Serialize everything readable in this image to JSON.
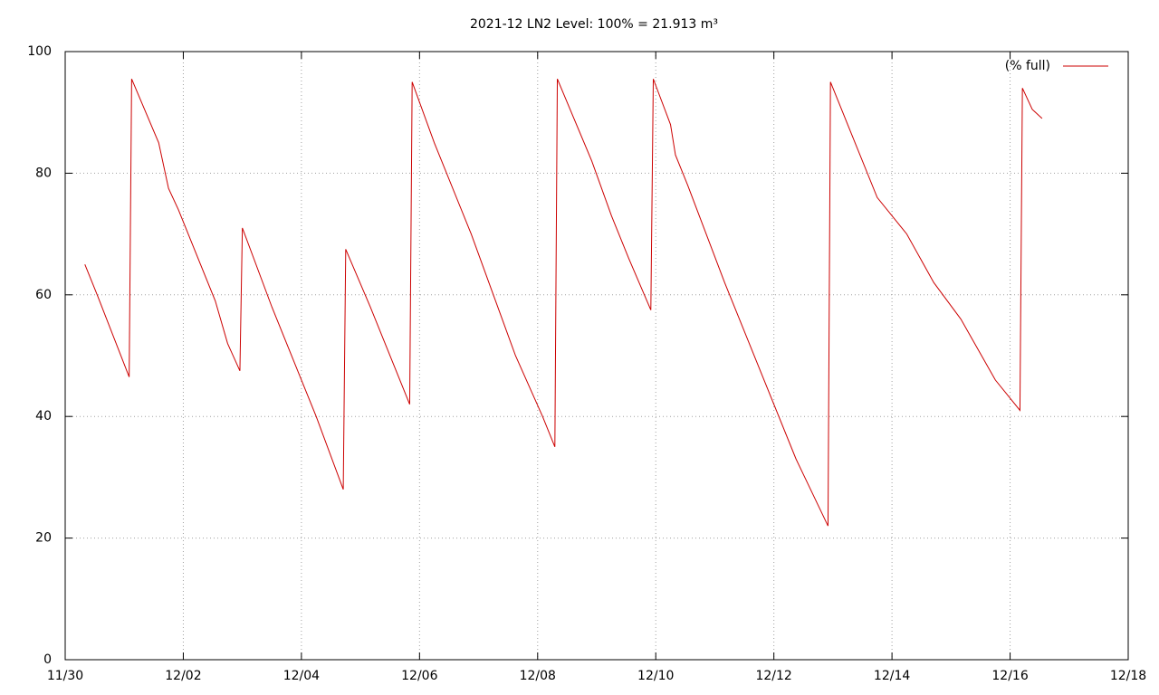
{
  "chart_data": {
    "type": "line",
    "title": "2021-12 LN2 Level: 100% = 21.913 m³",
    "x": [
      "11/30 08:00",
      "11/30 13:00",
      "12/01 02:00",
      "12/01 03:00",
      "12/01 14:00",
      "12/01 18:00",
      "12/01 22:00",
      "12/02 05:00",
      "12/02 13:00",
      "12/02 18:00",
      "12/02 23:00",
      "12/03 00:00",
      "12/03 12:00",
      "12/03 23:00",
      "12/04 06:00",
      "12/04 17:00",
      "12/04 18:00",
      "12/05 04:00",
      "12/05 14:00",
      "12/05 20:00",
      "12/05 21:00",
      "12/06 06:00",
      "12/06 21:00",
      "12/07 06:00",
      "12/07 15:00",
      "12/08 02:00",
      "12/08 07:00",
      "12/08 08:00",
      "12/08 22:00",
      "12/09 06:00",
      "12/09 13:00",
      "12/09 22:00",
      "12/09 23:00",
      "12/10 06:00",
      "12/10 08:00",
      "12/10 13:00",
      "12/11 04:00",
      "12/11 19:00",
      "12/12 09:00",
      "12/12 22:00",
      "12/12 23:00",
      "12/13 06:00",
      "12/13 18:00",
      "12/14 06:00",
      "12/14 17:00",
      "12/15 04:00",
      "12/15 18:00",
      "12/16 04:00",
      "12/16 05:00",
      "12/16 09:00",
      "12/16 13:00"
    ],
    "series": [
      {
        "name": "(% full)",
        "color": "#cc0000",
        "values": [
          65,
          60,
          46.5,
          95.5,
          85,
          77.5,
          74,
          67,
          59,
          52,
          47.5,
          71,
          58,
          47,
          40,
          28,
          67.5,
          58,
          48,
          42,
          95,
          85,
          70,
          60,
          50,
          40,
          35,
          95.5,
          82,
          73,
          66,
          57.5,
          95.5,
          88,
          83,
          78,
          62,
          47,
          33,
          22,
          95,
          88,
          76,
          70,
          62,
          56,
          46,
          41,
          94,
          90.5,
          89
        ]
      }
    ],
    "xlim": [
      "11/30",
      "12/18"
    ],
    "xticks": [
      "11/30",
      "12/02",
      "12/04",
      "12/06",
      "12/08",
      "12/10",
      "12/12",
      "12/14",
      "12/16",
      "12/18"
    ],
    "ylim": [
      0,
      100
    ],
    "yticks": [
      0,
      20,
      40,
      60,
      80,
      100
    ],
    "grid": true,
    "legend": "top-right"
  }
}
